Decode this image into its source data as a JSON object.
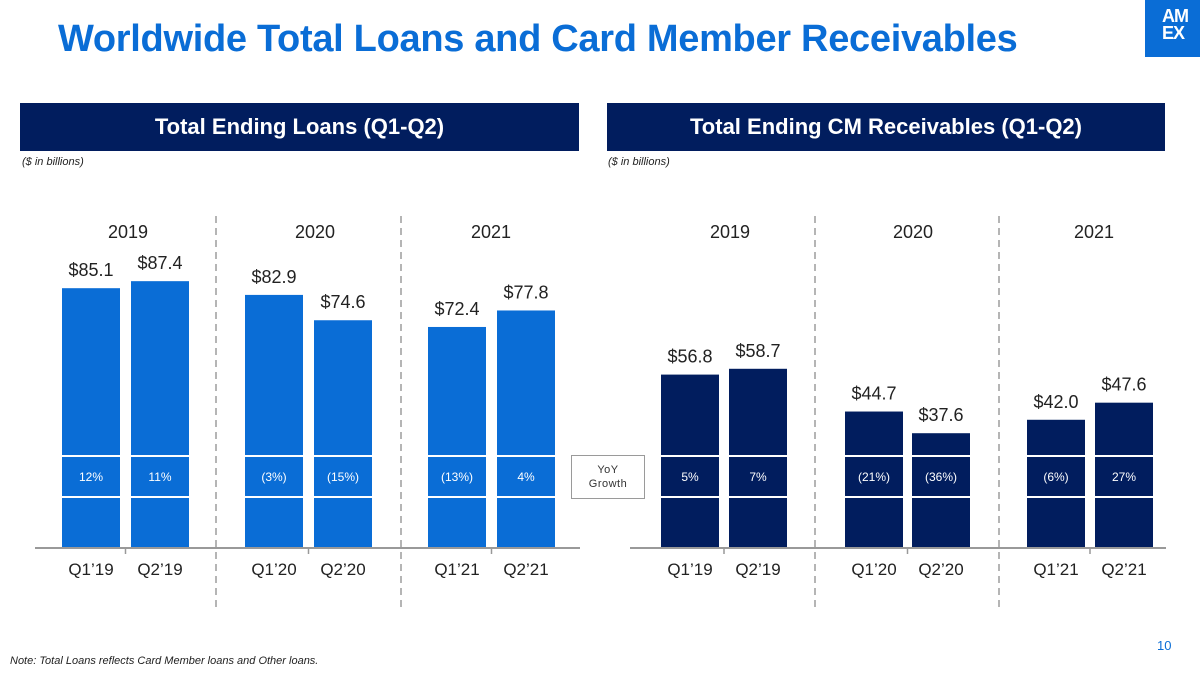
{
  "slide": {
    "title": "Worldwide Total Loans and Card Member Receivables",
    "logo_lines": [
      "AM",
      "EX"
    ],
    "footnote": "Note: Total Loans reflects Card Member loans and Other loans.",
    "page_number": "10",
    "yoy_label": [
      "YoY",
      "Growth"
    ]
  },
  "colors": {
    "title_blue": "#0a6dd6",
    "header_navy": "#011d5e",
    "loans_bar": "#0a6dd6",
    "receivables_bar": "#011d5e"
  },
  "chart_data": [
    {
      "type": "bar",
      "title": "Total Ending Loans (Q1-Q2)",
      "unit_note": "($ in billions)",
      "groups": [
        "2019",
        "2020",
        "2021"
      ],
      "categories": [
        "Q1’19",
        "Q2’19",
        "Q1’20",
        "Q2’20",
        "Q1’21",
        "Q2’21"
      ],
      "values": [
        85.1,
        87.4,
        82.9,
        74.6,
        72.4,
        77.8
      ],
      "value_labels": [
        "$85.1",
        "$87.4",
        "$82.9",
        "$74.6",
        "$72.4",
        "$77.8"
      ],
      "yoy_growth": [
        "12%",
        "11%",
        "(3%)",
        "(15%)",
        "(13%)",
        "4%"
      ],
      "ylim": [
        0,
        100
      ]
    },
    {
      "type": "bar",
      "title": "Total Ending CM Receivables (Q1-Q2)",
      "unit_note": "($ in billions)",
      "groups": [
        "2019",
        "2020",
        "2021"
      ],
      "categories": [
        "Q1’19",
        "Q2’19",
        "Q1’20",
        "Q2’20",
        "Q1’21",
        "Q2’21"
      ],
      "values": [
        56.8,
        58.7,
        44.7,
        37.6,
        42.0,
        47.6
      ],
      "value_labels": [
        "$56.8",
        "$58.7",
        "$44.7",
        "$37.6",
        "$42.0",
        "$47.6"
      ],
      "yoy_growth": [
        "5%",
        "7%",
        "(21%)",
        "(36%)",
        "(6%)",
        "27%"
      ],
      "ylim": [
        0,
        100
      ]
    }
  ]
}
